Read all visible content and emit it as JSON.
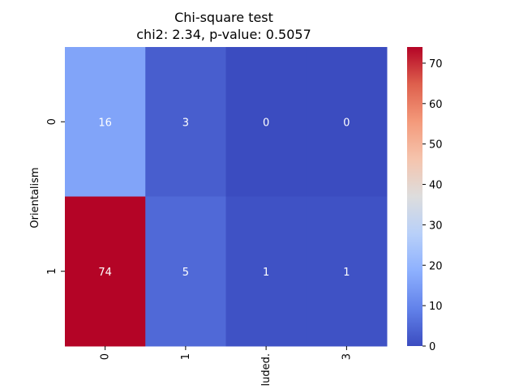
{
  "chart_data": {
    "type": "heatmap",
    "title_line1": "Chi-square test",
    "title_line2": "chi2: 2.34, p-value: 0.5057",
    "ylabel": "Orientalism",
    "xlabel": "",
    "row_labels": [
      "0",
      "1"
    ],
    "col_labels": [
      "0",
      "1",
      "luded.",
      "3"
    ],
    "values": [
      [
        16,
        3,
        0,
        0
      ],
      [
        74,
        5,
        1,
        1
      ]
    ],
    "vmin": 0,
    "vmax": 74,
    "colorbar_ticks": [
      0,
      10,
      20,
      30,
      40,
      50,
      60,
      70
    ],
    "colormap": "coolwarm",
    "annotation_color": "#ffffff"
  }
}
